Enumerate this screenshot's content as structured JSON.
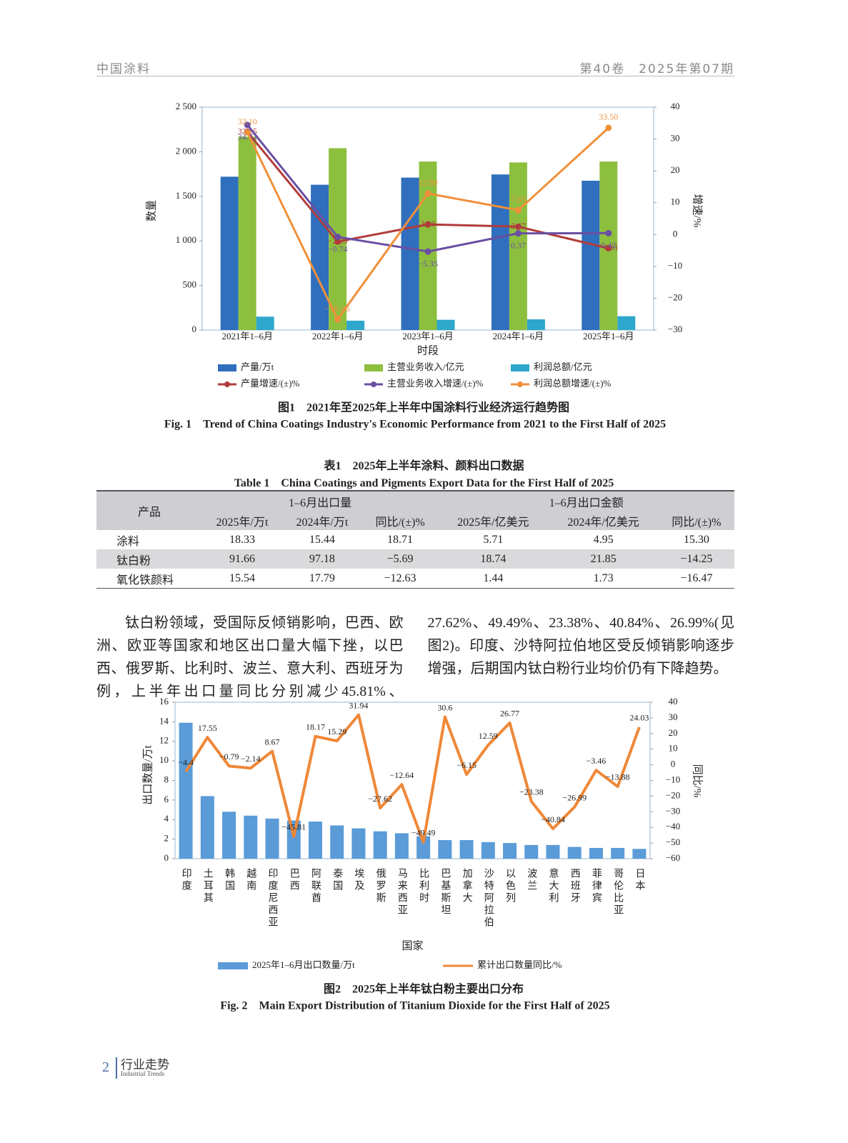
{
  "header": {
    "journal": "中国涂料",
    "issue": "第40卷　2025年第07期"
  },
  "chart_data": [
    {
      "type": "bar_line",
      "title": "图1　2021年至2025年上半年中国涂料行业经济运行趋势图",
      "title_en": "Fig. 1　Trend of China Coatings Industry's Economic Performance from 2021 to the First Half of 2025",
      "x_label": "时段",
      "y_label": "数量",
      "y2_label": "增速/%",
      "categories": [
        "2021年1–6月",
        "2022年1–6月",
        "2023年1–6月",
        "2024年1–6月",
        "2025年1–6月"
      ],
      "ylim": [
        0,
        2500
      ],
      "yticks": [
        0,
        500,
        {
          "value": 1000,
          "label": "1 000"
        },
        {
          "value": 1500,
          "label": "1 500"
        },
        {
          "value": 2000,
          "label": "2 000"
        },
        {
          "value": 2500,
          "label": "2 500"
        }
      ],
      "y2lim": [
        -30,
        40
      ],
      "y2ticks": [
        {
          "value": -30,
          "label": "−30"
        },
        {
          "value": -20,
          "label": "−20"
        },
        {
          "value": -10,
          "label": "−10"
        },
        0,
        10,
        20,
        30,
        40
      ],
      "markers": true,
      "vertical_categories": false,
      "series": [
        {
          "name": "产量/万t",
          "type": "bar",
          "color": "#2f6fbd",
          "values": [
            1720,
            1630,
            1710,
            1745,
            1675
          ]
        },
        {
          "name": "主营业务收入/亿元",
          "type": "bar",
          "color": "#8dbf3e",
          "values": [
            2170,
            2040,
            1890,
            1880,
            1890
          ]
        },
        {
          "name": "利润总额/亿元",
          "type": "bar",
          "color": "#2ea7cc",
          "values": [
            150,
            105,
            115,
            120,
            155
          ]
        },
        {
          "name": "产量增速/(±)%",
          "type": "line",
          "axis": "y2",
          "color": "#b23b3b",
          "values": [
            32.25,
            -2.23,
            3.18,
            2.47,
            -4.31
          ],
          "value_labels": [
            "32.25",
            "−2.23",
            "3.18",
            "2.47",
            "−4.31"
          ]
        },
        {
          "name": "主营业务收入增速/(±)%",
          "type": "line",
          "axis": "y2",
          "color": "#6a4fa3",
          "values": [
            34.42,
            -0.74,
            -5.35,
            0.37,
            0.42
          ],
          "value_labels": [
            "34.42",
            "−0.74",
            "−5.35",
            "0.37",
            "0.42"
          ]
        },
        {
          "name": "利润总额增速/(±)%",
          "type": "line",
          "axis": "y2",
          "color": "#f0903a",
          "values": [
            32.1,
            -26.66,
            12.89,
            7.63,
            33.5
          ],
          "value_labels": [
            "32.10",
            "−26.66",
            "12.89",
            "7.63",
            "33.50"
          ]
        }
      ]
    },
    {
      "type": "bar_line",
      "title": "图2　2025年上半年钛白粉主要出口分布",
      "title_en": "Fig. 2　Main Export Distribution of Titanium Dioxide for the First Half of 2025",
      "x_label": "国家",
      "y_label": "出口数量/万t",
      "y2_label": "同比/%",
      "categories": [
        "印度",
        "土耳其",
        "韩国",
        "越南",
        "印度尼西亚",
        "巴西",
        "阿联酋",
        "泰国",
        "埃及",
        "俄罗斯",
        "马来西亚",
        "比利时",
        "巴基斯坦",
        "加拿大",
        "沙特阿拉伯",
        "以色列",
        "波兰",
        "意大利",
        "西班牙",
        "菲律宾",
        "哥伦比亚",
        "日本"
      ],
      "ylim": [
        0,
        16
      ],
      "yticks": [
        0,
        2,
        4,
        6,
        8,
        10,
        12,
        14,
        16
      ],
      "y2lim": [
        -60,
        40
      ],
      "y2ticks": [
        {
          "value": -60,
          "label": "−60"
        },
        {
          "value": -50,
          "label": "−50"
        },
        {
          "value": -40,
          "label": "−40"
        },
        {
          "value": -30,
          "label": "−30"
        },
        {
          "value": -20,
          "label": "−20"
        },
        {
          "value": -10,
          "label": "−10"
        },
        0,
        10,
        20,
        30,
        40
      ],
      "markers": false,
      "vertical_categories": true,
      "series": [
        {
          "name": "2025年1–6月出口数量/万t",
          "type": "bar",
          "color": "#5a9bd8",
          "values": [
            13.9,
            6.4,
            4.8,
            4.4,
            4.1,
            3.9,
            3.8,
            3.4,
            3.1,
            2.8,
            2.6,
            2.3,
            1.9,
            1.9,
            1.7,
            1.6,
            1.4,
            1.4,
            1.2,
            1.1,
            1.1,
            1.0
          ]
        },
        {
          "name": "累计出口数量同比/%",
          "type": "line",
          "axis": "y2",
          "color": "#ef8838",
          "values": [
            -4.4,
            17.55,
            -0.79,
            -2.14,
            8.67,
            -45.81,
            18.17,
            15.29,
            31.94,
            -27.62,
            -12.64,
            -49.49,
            30.6,
            -6.15,
            12.59,
            26.77,
            -23.38,
            -40.84,
            -26.99,
            -3.46,
            -13.88,
            24.03
          ],
          "value_labels": [
            "−4.4",
            "17.55",
            "−0.79",
            "−2.14",
            "8.67",
            "−45.81",
            "18.17",
            "15.29",
            "31.94",
            "−27.62",
            "−12.64",
            "−49.49",
            "30.6",
            "−6.15",
            "12.59",
            "26.77",
            "−23.38",
            "−40.84",
            "−26.99",
            "−3.46",
            "−13.88",
            "24.03"
          ]
        }
      ]
    }
  ],
  "table": {
    "caption": "表1　2025年上半年涂料、颜料出口数据",
    "caption_en": "Table 1　China Coatings and Pigments Export Data for the First Half of 2025",
    "product": "产品",
    "group_volume": "1–6月出口量",
    "group_value": "1–6月出口金额",
    "columns": [
      "2025年/万t",
      "2024年/万t",
      "同比/(±)%",
      "2025年/亿美元",
      "2024年/亿美元",
      "同比/(±)%"
    ],
    "rows": [
      [
        "涂料",
        "18.33",
        "15.44",
        "18.71",
        "5.71",
        "4.95",
        "15.30"
      ],
      [
        "钛白粉",
        "91.66",
        "97.18",
        "−5.69",
        "18.74",
        "21.85",
        "−14.25"
      ],
      [
        "氧化铁颜料",
        "15.54",
        "17.79",
        "−12.63",
        "1.44",
        "1.73",
        "−16.47"
      ]
    ]
  },
  "body": "钛白粉领域，受国际反倾销影响，巴西、欧洲、欧亚等国家和地区出口量大幅下挫，以巴西、俄罗斯、比利时、波兰、意大利、西班牙为例，上半年出口量同比分别减少45.81%、27.62%、49.49%、23.38%、40.84%、26.99%(见图2)。印度、沙特阿拉伯地区受反倾销影响逐步增强，后期国内钛白粉行业均价仍有下降趋势。",
  "footer": {
    "page": "2",
    "section": "行业走势",
    "section_en": "Industrial Trends"
  }
}
